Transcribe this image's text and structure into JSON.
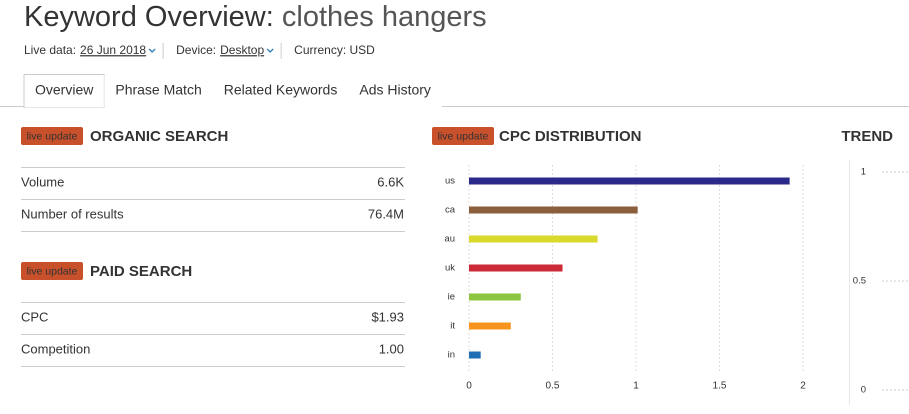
{
  "header": {
    "title": "Keyword Overview:",
    "keyword": "clothes hangers",
    "meta": [
      {
        "label": "Live data:",
        "value": "26 Jun 2018"
      },
      {
        "label": "Device:",
        "value": "Desktop"
      },
      {
        "label": "Currency: USD"
      }
    ]
  },
  "tabs": [
    {
      "label": "Overview",
      "active": true
    },
    {
      "label": "Phrase Match",
      "active": false
    },
    {
      "label": "Related Keywords",
      "active": false
    },
    {
      "label": "Ads History",
      "active": false
    }
  ],
  "organic_search": {
    "badge": "live update",
    "heading": "ORGANIC SEARCH",
    "rows": [
      [
        "Volume",
        "6.6K"
      ],
      [
        "Number of results",
        "76.4M"
      ]
    ]
  },
  "paid_search": {
    "badge": "live update",
    "heading": "PAID SEARCH",
    "rows": [
      [
        "CPC",
        "$1.93"
      ],
      [
        "Competition",
        "1.00"
      ]
    ]
  },
  "chart_data": [
    {
      "type": "bar",
      "orientation": "horizontal",
      "badge": "live update",
      "title": "CPC DISTRIBUTION",
      "categories": [
        "us",
        "ca",
        "au",
        "uk",
        "ie",
        "it",
        "in"
      ],
      "values": [
        1.92,
        1.01,
        0.77,
        0.56,
        0.31,
        0.25,
        0.07
      ],
      "colors": [
        "#2b2a8a",
        "#8b5e3c",
        "#d9d92b",
        "#cc2a36",
        "#8cc63f",
        "#f7941d",
        "#1f6fb5"
      ],
      "xlim": [
        0,
        2
      ],
      "xticks": [
        0,
        0.5,
        1,
        1.5,
        2
      ],
      "grid": true
    },
    {
      "type": "line",
      "title": "TREND",
      "ylim": [
        0,
        1
      ],
      "yticks": [
        0,
        0.5,
        1
      ],
      "grid": true
    }
  ]
}
